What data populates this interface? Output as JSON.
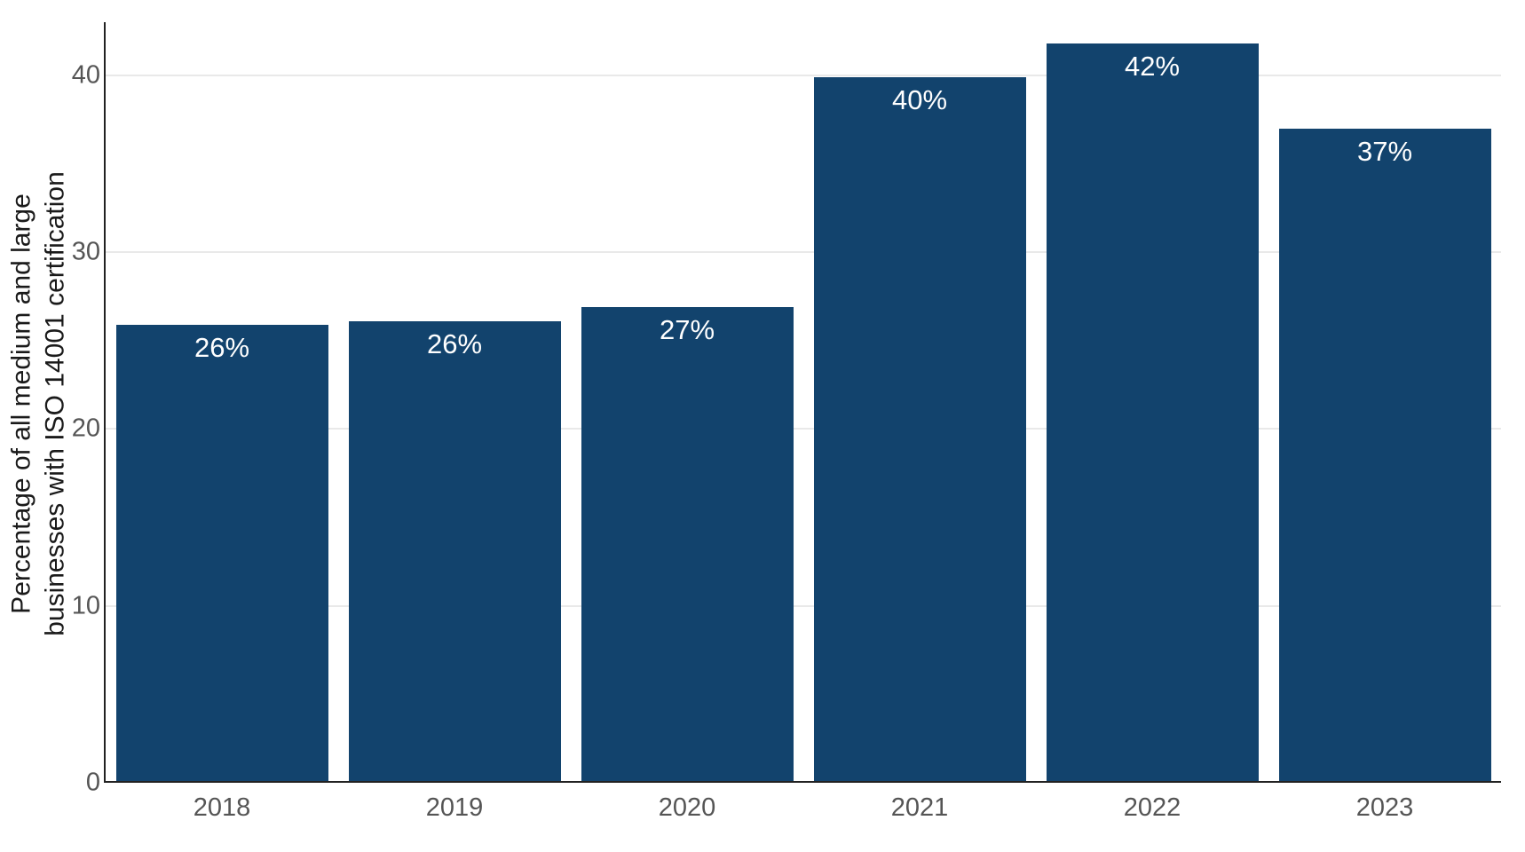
{
  "chart_data": {
    "type": "bar",
    "title": "",
    "xlabel": "",
    "ylabel": "Percentage of all medium and large\nbusinesses with ISO 14001 certification",
    "categories": [
      "2018",
      "2019",
      "2020",
      "2021",
      "2022",
      "2023"
    ],
    "values": [
      26,
      26,
      27,
      40,
      42,
      37
    ],
    "bar_labels": [
      "26%",
      "26%",
      "27%",
      "40%",
      "42%",
      "37%"
    ],
    "bar_heights_estimated": [
      25.9,
      26.1,
      26.9,
      39.9,
      41.8,
      37.0
    ],
    "yticks": [
      0,
      10,
      20,
      30,
      40
    ],
    "ylim": [
      0,
      43
    ],
    "grid": "horizontal-major",
    "legend": "none",
    "colors": {
      "bar": "#12436d",
      "bar_label_text": "#ffffff",
      "tick_label": "#555555",
      "axis_line": "#222222",
      "gridline": "#e9e9e9",
      "background": "#ffffff",
      "ylabel_text": "#1a1a1a"
    }
  }
}
